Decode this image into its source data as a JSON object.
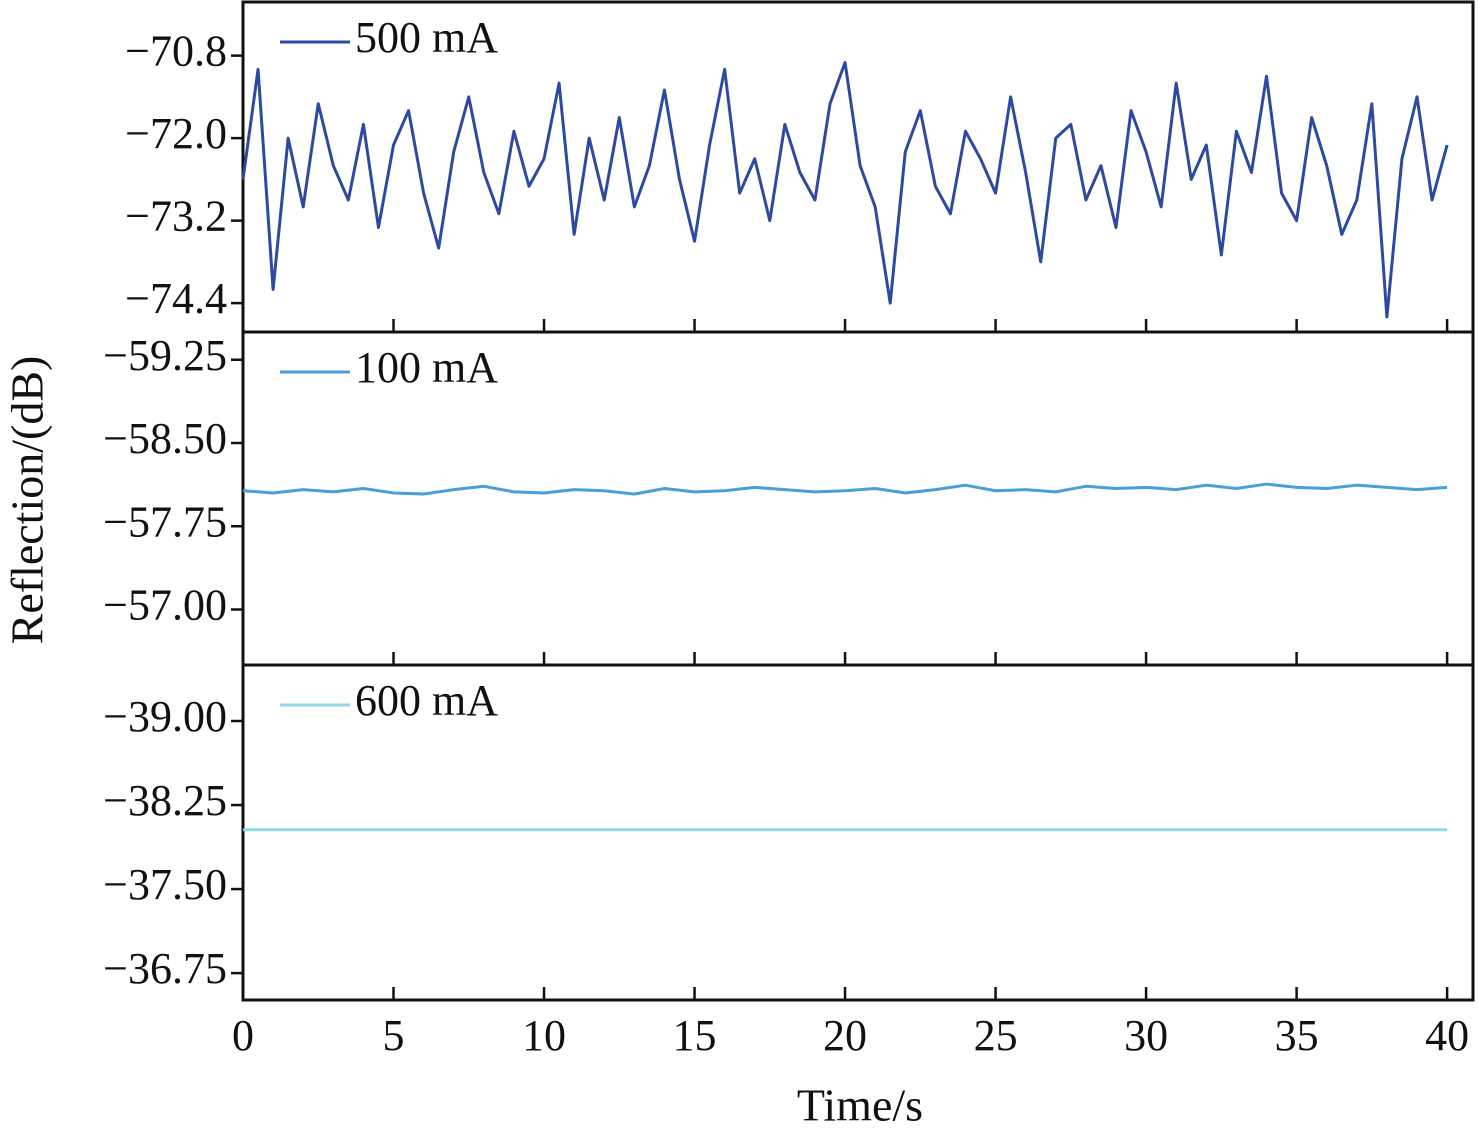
{
  "chart_data": [
    {
      "type": "line",
      "x": [
        0,
        0.5,
        1,
        1.5,
        2,
        2.5,
        3,
        3.5,
        4,
        4.5,
        5,
        5.5,
        6,
        6.5,
        7,
        7.5,
        8,
        8.5,
        9,
        9.5,
        10,
        10.5,
        11,
        11.5,
        12,
        12.5,
        13,
        13.5,
        14,
        14.5,
        15,
        15.5,
        16,
        16.5,
        17,
        17.5,
        18,
        18.5,
        19,
        19.5,
        20,
        20.5,
        21,
        21.5,
        22,
        22.5,
        23,
        23.5,
        24,
        24.5,
        25,
        25.5,
        26,
        26.5,
        27,
        27.5,
        28,
        28.5,
        29,
        29.5,
        30,
        30.5,
        31,
        31.5,
        32,
        32.5,
        33,
        33.5,
        34,
        34.5,
        35,
        35.5,
        36,
        36.5,
        37,
        37.5,
        38,
        38.5,
        39,
        39.5,
        40
      ],
      "series": [
        {
          "name": "500 mA",
          "color": "#2e4aa0",
          "values": [
            -72.6,
            -71.0,
            -74.2,
            -72.0,
            -73.0,
            -71.5,
            -72.4,
            -72.9,
            -71.8,
            -73.3,
            -72.1,
            -71.6,
            -72.8,
            -73.6,
            -72.2,
            -71.4,
            -72.5,
            -73.1,
            -71.9,
            -72.7,
            -72.3,
            -71.2,
            -73.4,
            -72.0,
            -72.9,
            -71.7,
            -73.0,
            -72.4,
            -71.3,
            -72.6,
            -73.5,
            -72.1,
            -71.0,
            -72.8,
            -72.3,
            -73.2,
            -71.8,
            -72.5,
            -72.9,
            -71.5,
            -70.9,
            -72.4,
            -73.0,
            -74.4,
            -72.2,
            -71.6,
            -72.7,
            -73.1,
            -71.9,
            -72.3,
            -72.8,
            -71.4,
            -72.5,
            -73.8,
            -72.0,
            -71.8,
            -72.9,
            -72.4,
            -73.3,
            -71.6,
            -72.2,
            -73.0,
            -71.2,
            -72.6,
            -72.1,
            -73.7,
            -71.9,
            -72.5,
            -71.1,
            -72.8,
            -73.2,
            -71.7,
            -72.4,
            -73.4,
            -72.9,
            -71.5,
            -74.6,
            -72.3,
            -71.4,
            -72.9,
            -72.1
          ]
        }
      ],
      "ylim": [
        -74.82,
        -70.02
      ],
      "yticks": [
        {
          "value": -70.8,
          "label": "−70.8"
        },
        {
          "value": -72.0,
          "label": "−72.0"
        },
        {
          "value": -73.2,
          "label": "−73.2"
        },
        {
          "value": -74.4,
          "label": "−74.4"
        }
      ]
    },
    {
      "type": "line",
      "ylabel": "Reflection/(dB)",
      "x": [
        0,
        1,
        2,
        3,
        4,
        5,
        6,
        7,
        8,
        9,
        10,
        11,
        12,
        13,
        14,
        15,
        16,
        17,
        18,
        19,
        20,
        21,
        22,
        23,
        24,
        25,
        26,
        27,
        28,
        29,
        30,
        31,
        32,
        33,
        34,
        35,
        36,
        37,
        38,
        39,
        40
      ],
      "series": [
        {
          "name": "100 mA",
          "color": "#4a9fd8",
          "values": [
            -58.07,
            -58.05,
            -58.08,
            -58.06,
            -58.09,
            -58.05,
            -58.04,
            -58.08,
            -58.11,
            -58.06,
            -58.05,
            -58.08,
            -58.07,
            -58.04,
            -58.09,
            -58.06,
            -58.07,
            -58.1,
            -58.08,
            -58.06,
            -58.07,
            -58.09,
            -58.05,
            -58.08,
            -58.12,
            -58.07,
            -58.08,
            -58.06,
            -58.11,
            -58.09,
            -58.1,
            -58.08,
            -58.12,
            -58.09,
            -58.13,
            -58.1,
            -58.09,
            -58.12,
            -58.1,
            -58.08,
            -58.1
          ]
        }
      ],
      "ylim": [
        -56.5,
        -59.5
      ],
      "yticks": [
        {
          "value": -59.25,
          "label": "−59.25"
        },
        {
          "value": -58.5,
          "label": "−58.50"
        },
        {
          "value": -57.75,
          "label": "−57.75"
        },
        {
          "value": -57,
          "label": "−57.00"
        }
      ]
    },
    {
      "type": "line",
      "xlabel": "Time/s",
      "x": [
        0,
        2,
        4,
        6,
        8,
        10,
        12,
        14,
        16,
        18,
        20,
        22,
        24,
        26,
        28,
        30,
        32,
        34,
        36,
        38,
        40
      ],
      "series": [
        {
          "name": "600 mA",
          "color": "#8fd8ea",
          "values": [
            -38.03,
            -38.03,
            -38.03,
            -38.03,
            -38.03,
            -38.03,
            -38.03,
            -38.03,
            -38.03,
            -38.03,
            -38.03,
            -38.03,
            -38.03,
            -38.03,
            -38.03,
            -38.03,
            -38.03,
            -38.03,
            -38.03,
            -38.03,
            -38.03
          ]
        }
      ],
      "ylim": [
        -36.51,
        -39.5
      ],
      "yticks": [
        {
          "value": -39,
          "label": "−39.00"
        },
        {
          "value": -38.25,
          "label": "−38.25"
        },
        {
          "value": -37.5,
          "label": "−37.50"
        },
        {
          "value": -36.75,
          "label": "−36.75"
        }
      ],
      "xlim": [
        0,
        40.86
      ],
      "xticks": [
        0,
        5,
        10,
        15,
        20,
        25,
        30,
        35,
        40
      ]
    }
  ]
}
